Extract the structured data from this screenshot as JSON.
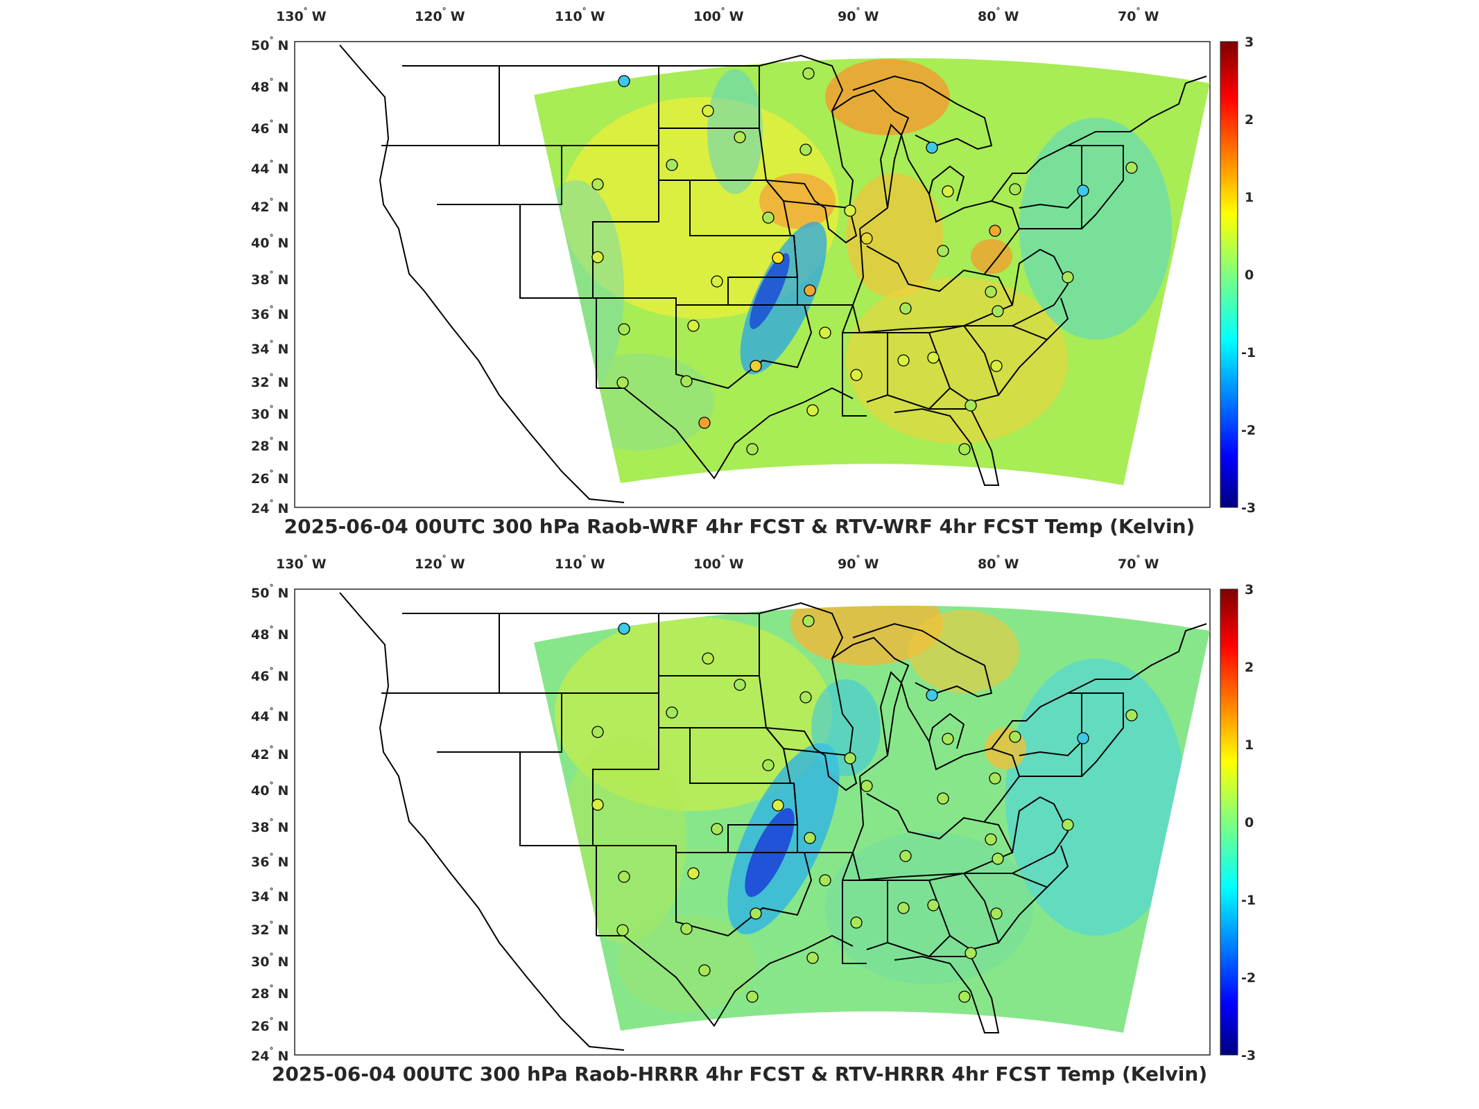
{
  "panels": [
    {
      "id": "wrf",
      "title": "2025-06-04 00UTC 300 hPa Raob-WRF 4hr FCST & RTV-WRF 4hr FCST Temp (Kelvin)"
    },
    {
      "id": "hrrr",
      "title": "2025-06-04 00UTC 300 hPa Raob-HRRR 4hr FCST & RTV-HRRR 4hr FCST Temp (Kelvin)"
    }
  ],
  "longitude_labels": [
    "130",
    "120",
    "110",
    "100",
    "90",
    "80",
    "70"
  ],
  "longitude_suffix": "W",
  "latitude_labels": [
    "50",
    "48",
    "46",
    "44",
    "42",
    "40",
    "38",
    "36",
    "34",
    "32",
    "30",
    "28",
    "26",
    "24"
  ],
  "latitude_suffix": "N",
  "degree_symbol": "°",
  "colorbar": {
    "ticks": [
      "3",
      "2",
      "1",
      "0",
      "-1",
      "-2",
      "-3"
    ],
    "colormap": "jet",
    "range": [
      -3,
      3
    ]
  },
  "colors": {
    "frame": "#262626",
    "state_lines": "#000000",
    "station_marker_edge": "#000000"
  }
}
